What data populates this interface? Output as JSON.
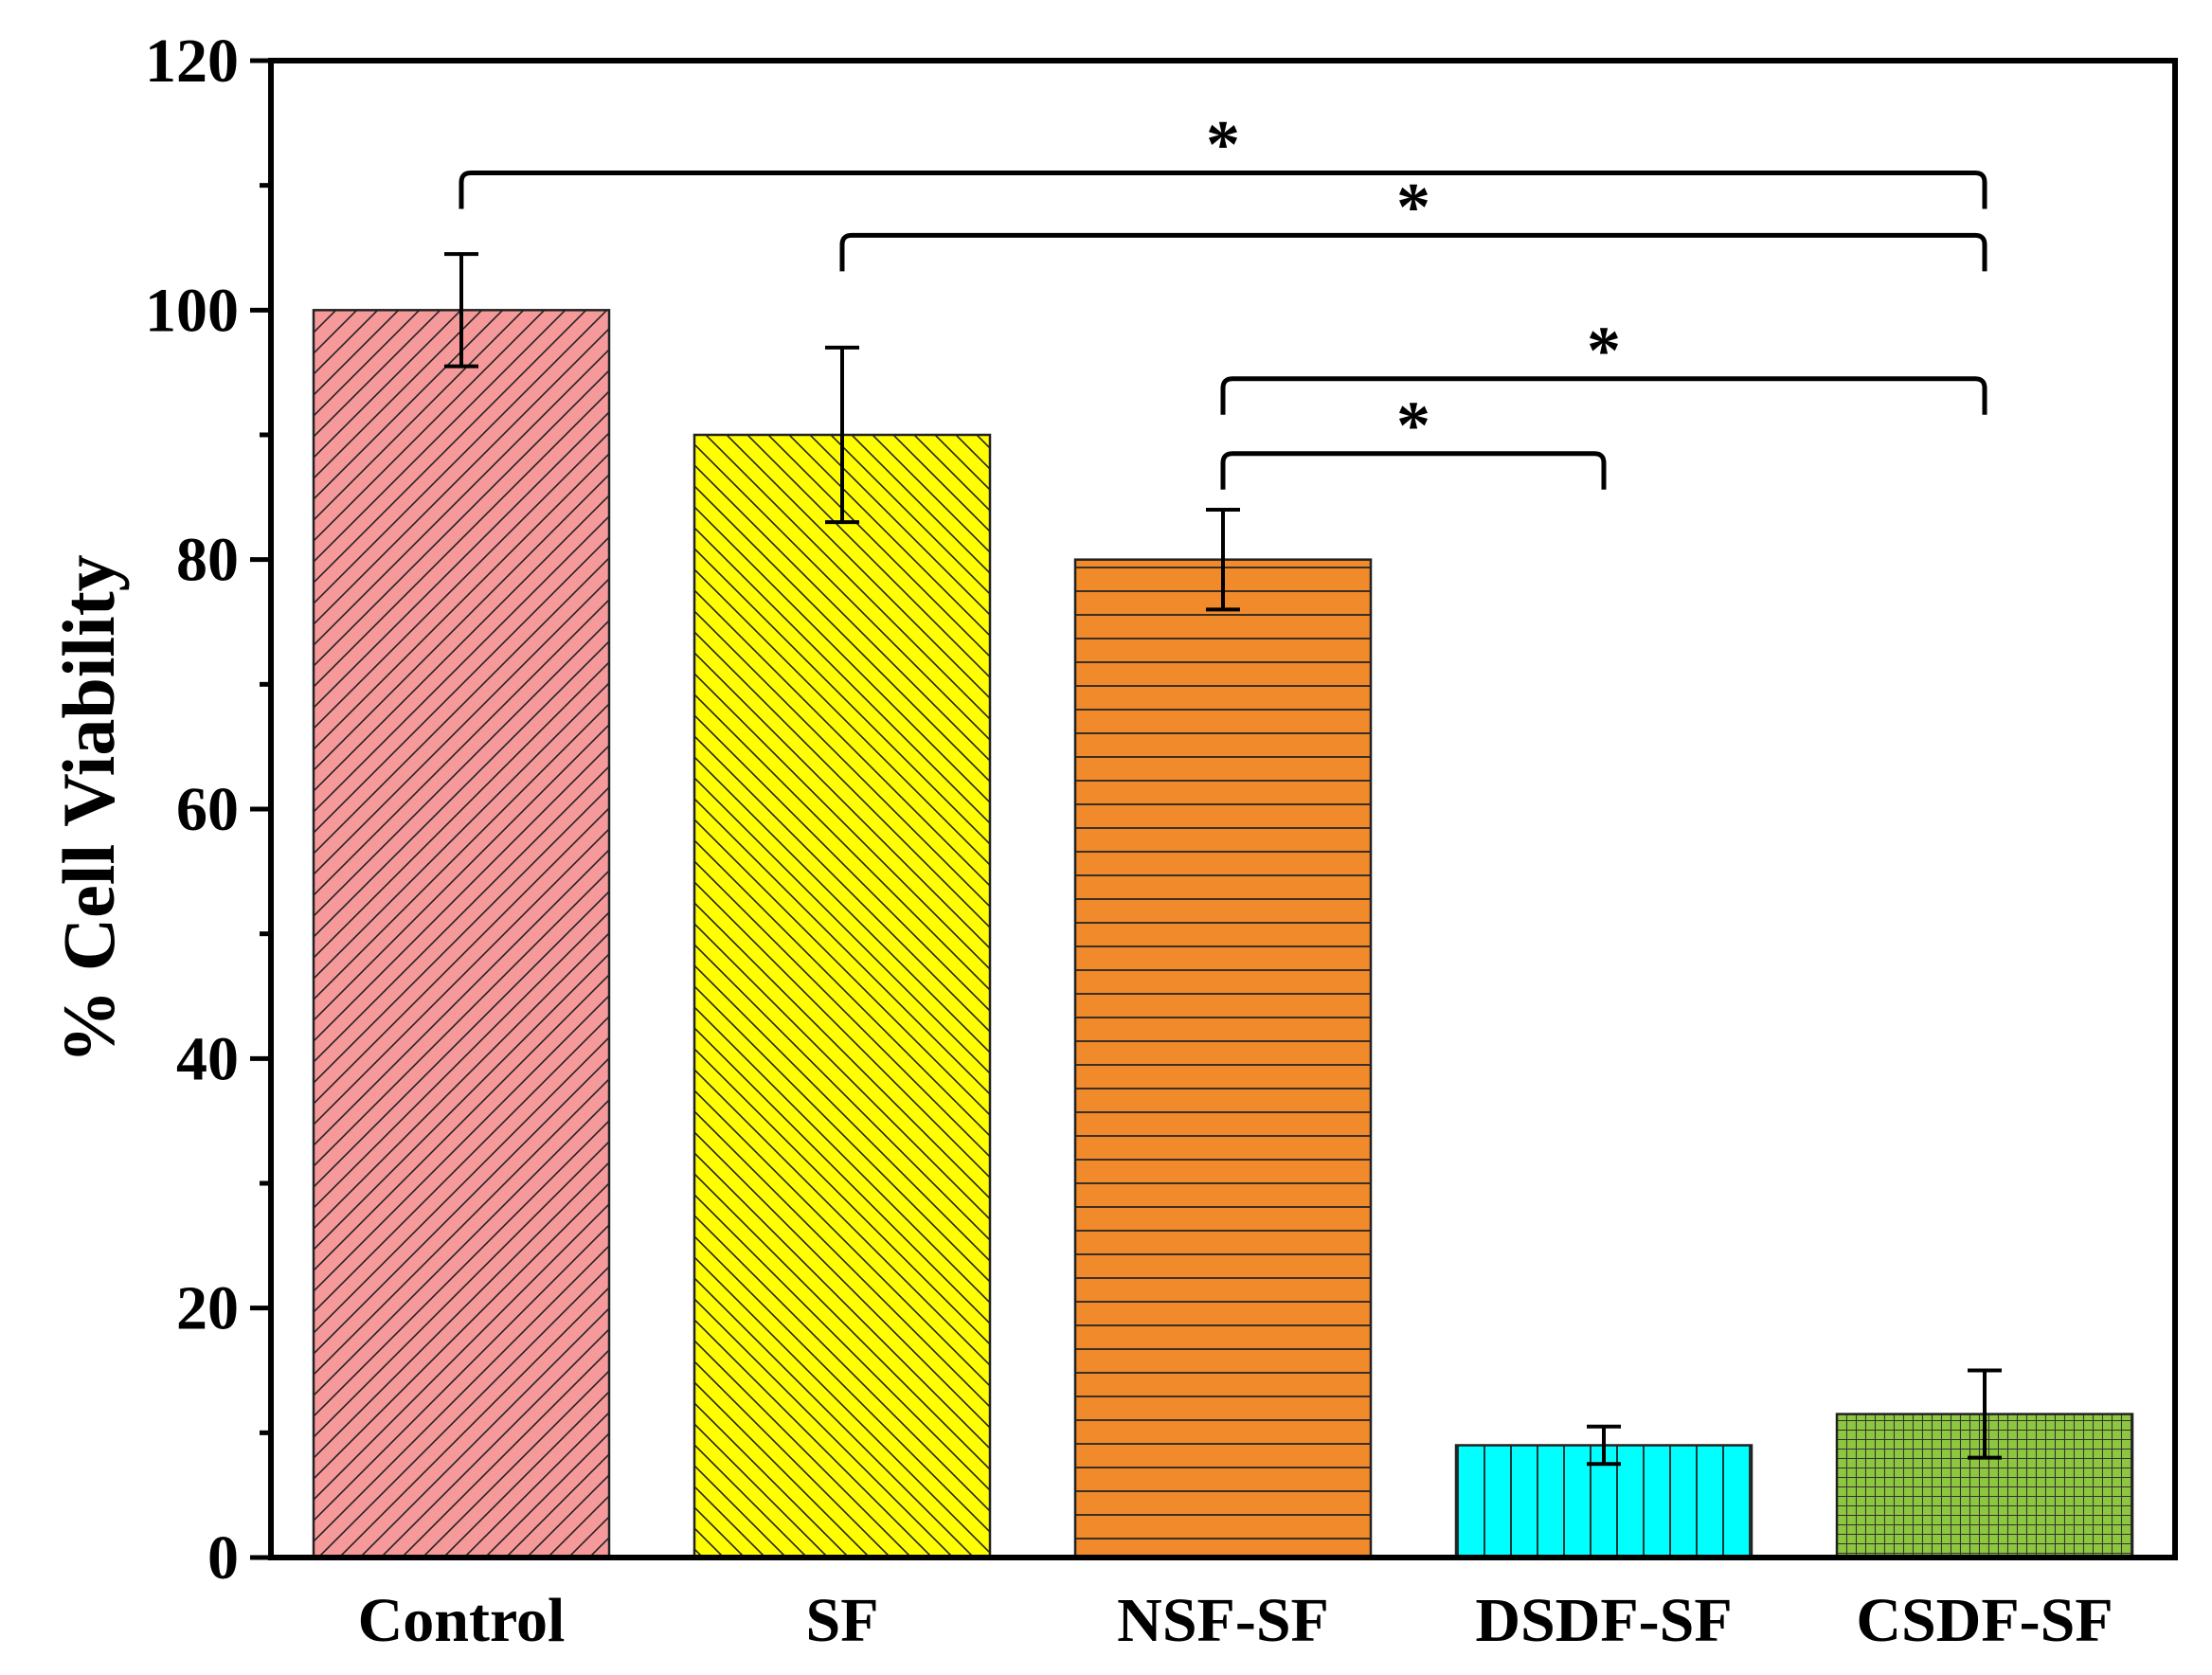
{
  "chart_data": {
    "type": "bar",
    "title": "",
    "xlabel": "",
    "ylabel": "% Cell Viability",
    "ylim": [
      0,
      120
    ],
    "yticks": [
      0,
      20,
      40,
      60,
      80,
      100,
      120
    ],
    "grid": false,
    "categories": [
      "Control",
      "SF",
      "NSF-SF",
      "DSDF-SF",
      "CSDF-SF"
    ],
    "values": [
      100,
      90,
      80,
      9,
      11.5
    ],
    "errors": [
      4.5,
      7,
      4,
      1.5,
      3.5
    ],
    "colors": [
      "#f6999a",
      "#ffff00",
      "#f08a2a",
      "#00ffff",
      "#8dc63f"
    ],
    "patterns": [
      "diagonal-up",
      "diagonal-down",
      "horizontal",
      "vertical",
      "grid"
    ],
    "significance": [
      {
        "from": 0,
        "to": 4,
        "level": 111,
        "label": "*"
      },
      {
        "from": 1,
        "to": 4,
        "level": 106,
        "label": "*"
      },
      {
        "from": 2,
        "to": 4,
        "level": 94.5,
        "label": "*"
      },
      {
        "from": 2,
        "to": 3,
        "level": 88.5,
        "label": "*"
      }
    ]
  }
}
